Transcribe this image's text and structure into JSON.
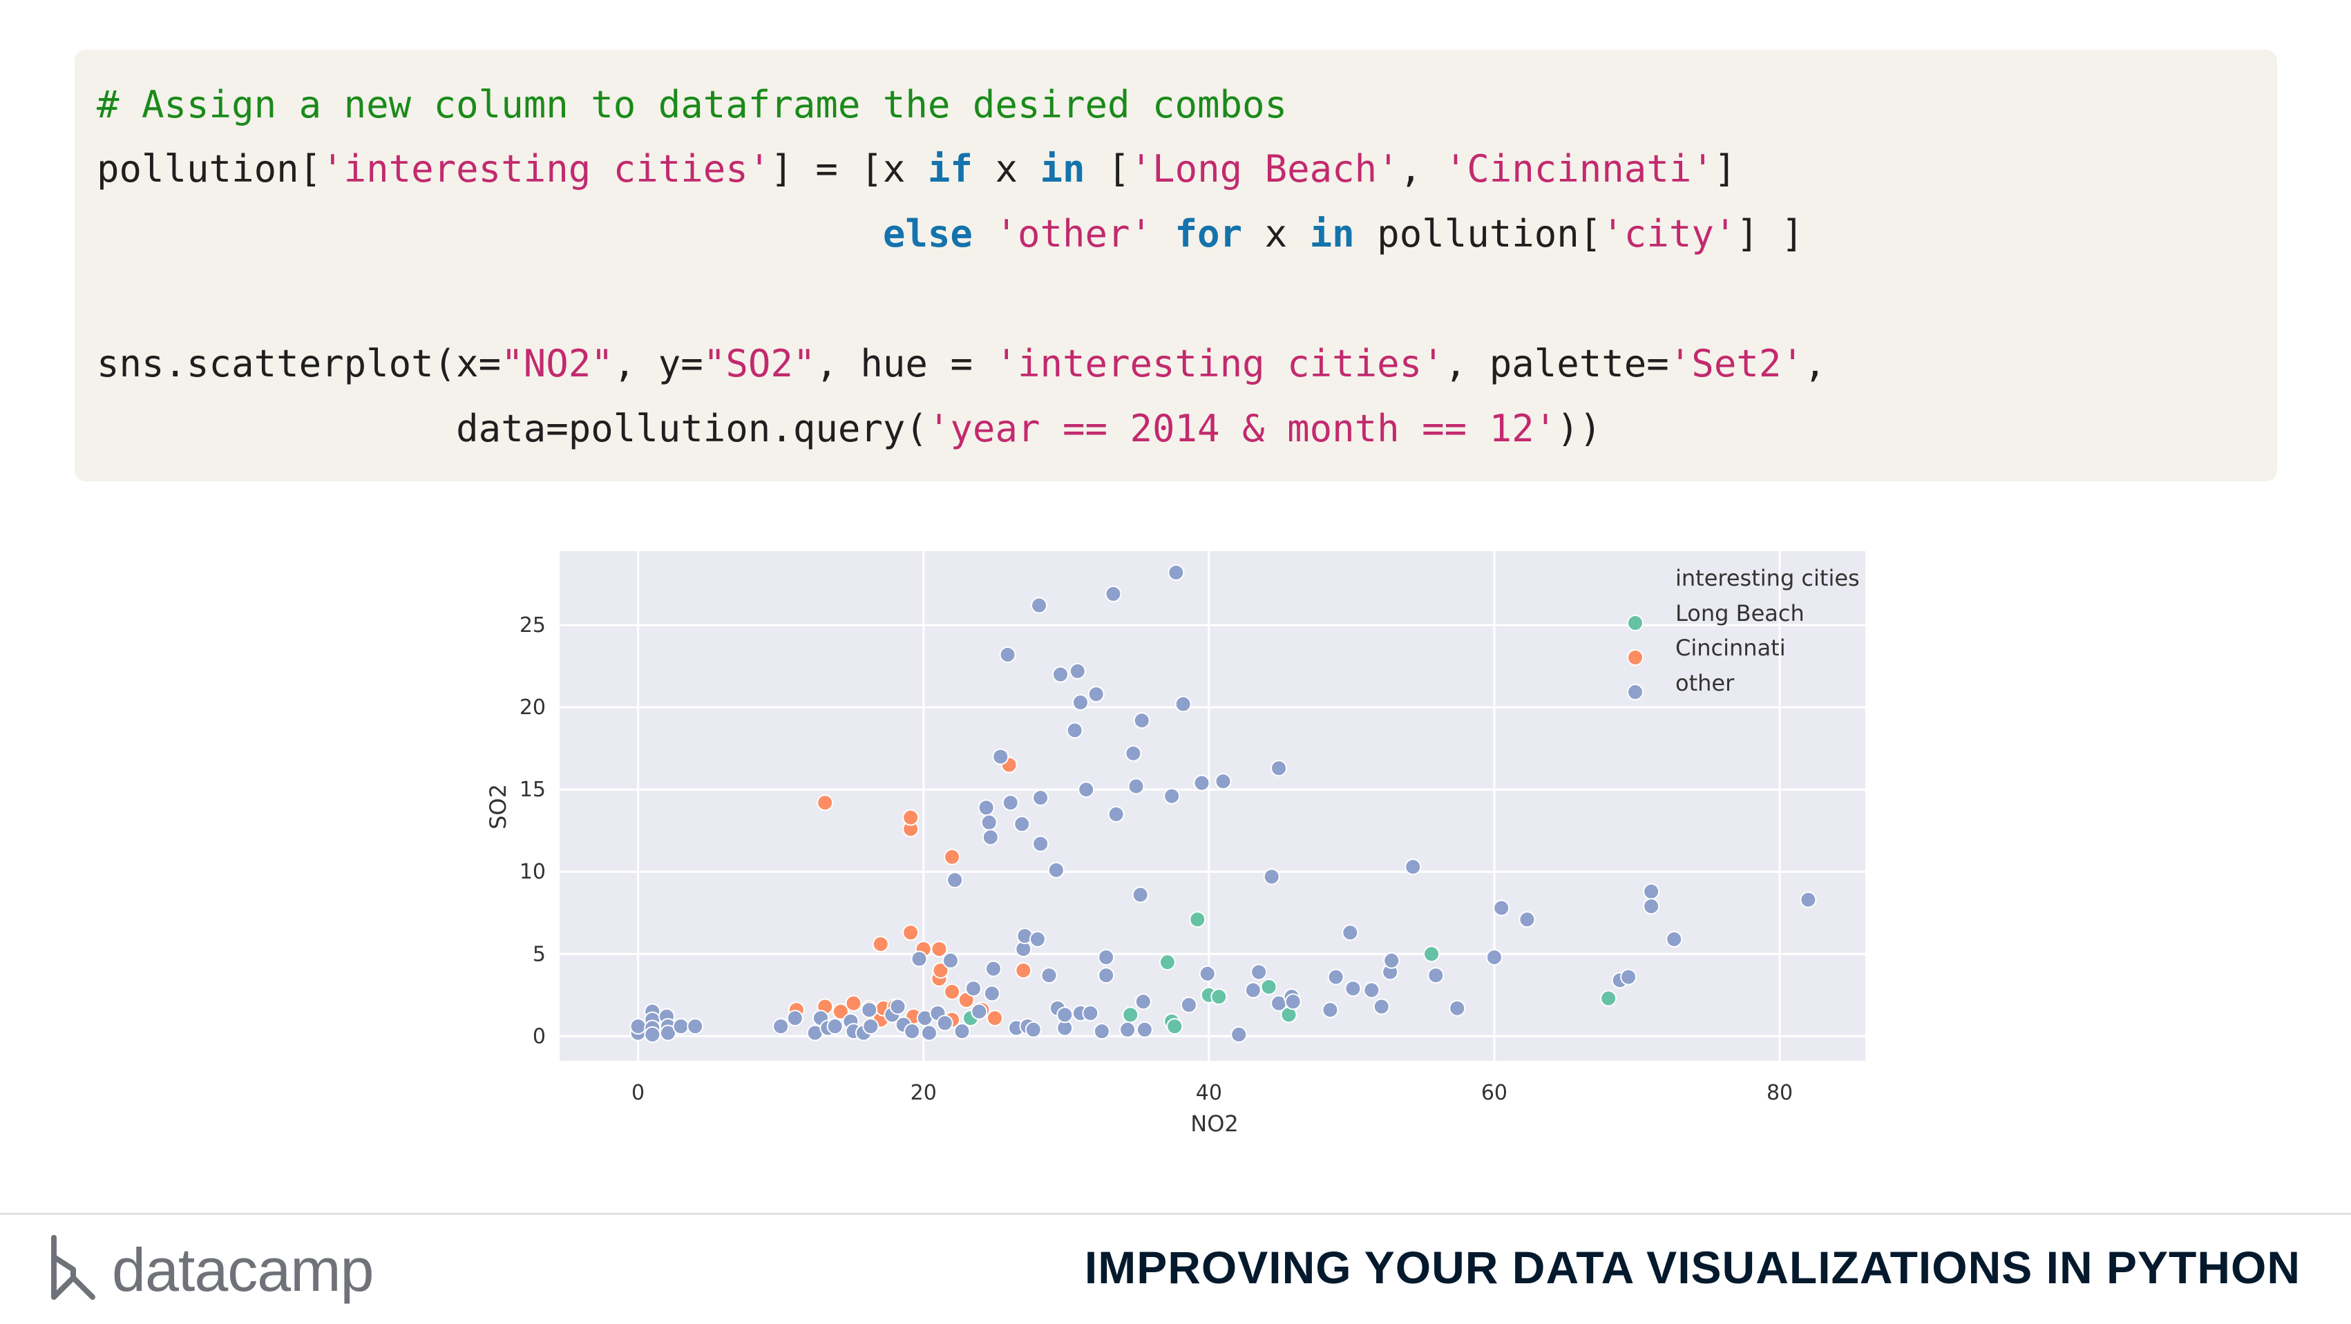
{
  "code": {
    "line1": "# Assign a new column to dataframe the desired combos",
    "line2_a": "pollution[",
    "line2_b": "'interesting cities'",
    "line2_c": "] = [x ",
    "line2_d": "if",
    "line2_e": " x ",
    "line2_f": "in",
    "line2_g": " [",
    "line2_h": "'Long Beach'",
    "line2_i": ", ",
    "line2_j": "'Cincinnati'",
    "line2_k": "]",
    "line3_indent": "                                   ",
    "line3_a": "else",
    "line3_b": " ",
    "line3_c": "'other'",
    "line3_d": " ",
    "line3_e": "for",
    "line3_f": " x ",
    "line3_g": "in",
    "line3_h": " pollution[",
    "line3_i": "'city'",
    "line3_j": "] ]",
    "line4_a": "sns.scatterplot(x=",
    "line4_b": "\"NO2\"",
    "line4_c": ", y=",
    "line4_d": "\"SO2\"",
    "line4_e": ", hue = ",
    "line4_f": "'interesting cities'",
    "line4_g": ", palette=",
    "line4_h": "'Set2'",
    "line4_i": ",",
    "line5_indent": "                ",
    "line5_a": "data=pollution.query(",
    "line5_b": "'year == 2014 & month == 12'",
    "line5_c": "))"
  },
  "footer": {
    "logo_text": "datacamp",
    "course_title": "IMPROVING YOUR DATA VISUALIZATIONS IN PYTHON"
  },
  "chart_data": {
    "type": "scatter",
    "xlabel": "NO2",
    "ylabel": "SO2",
    "xlim": [
      -5.5,
      86
    ],
    "ylim": [
      -1.5,
      29.5
    ],
    "xticks": [
      0,
      20,
      40,
      60,
      80
    ],
    "yticks": [
      0,
      5,
      10,
      15,
      20,
      25
    ],
    "grid": true,
    "legend_title": "interesting cities",
    "legend_position": "top-right",
    "colors": {
      "Long Beach": "#66c2a5",
      "Cincinnati": "#fc8d62",
      "other": "#8da0cb"
    },
    "series": [
      {
        "name": "Long Beach",
        "points": [
          [
            23.3,
            1.1
          ],
          [
            34.5,
            1.3
          ],
          [
            37.1,
            4.5
          ],
          [
            37.4,
            0.9
          ],
          [
            37.6,
            0.6
          ],
          [
            39.2,
            7.1
          ],
          [
            40.0,
            2.5
          ],
          [
            40.7,
            2.4
          ],
          [
            44.2,
            3.0
          ],
          [
            45.6,
            1.3
          ],
          [
            55.6,
            5.0
          ],
          [
            68.0,
            2.3
          ]
        ]
      },
      {
        "name": "Cincinnati",
        "points": [
          [
            11.1,
            1.6
          ],
          [
            13.1,
            1.8
          ],
          [
            13.1,
            14.2
          ],
          [
            14.2,
            1.5
          ],
          [
            15.1,
            2.0
          ],
          [
            16.2,
            1.7
          ],
          [
            17.0,
            1.0
          ],
          [
            17.0,
            5.6
          ],
          [
            17.2,
            1.7
          ],
          [
            18.0,
            1.8
          ],
          [
            19.1,
            6.3
          ],
          [
            19.1,
            12.6
          ],
          [
            19.1,
            13.3
          ],
          [
            19.3,
            1.2
          ],
          [
            20.0,
            5.3
          ],
          [
            21.1,
            5.3
          ],
          [
            21.1,
            3.5
          ],
          [
            21.2,
            4.0
          ],
          [
            22.0,
            2.7
          ],
          [
            22.0,
            1.0
          ],
          [
            22.0,
            10.9
          ],
          [
            23.0,
            2.2
          ],
          [
            24.1,
            1.6
          ],
          [
            25.0,
            1.1
          ],
          [
            26.0,
            16.5
          ],
          [
            27.0,
            4.0
          ]
        ]
      },
      {
        "name": "other",
        "points": [
          [
            0.0,
            0.2
          ],
          [
            0.0,
            0.6
          ],
          [
            1.0,
            1.5
          ],
          [
            1.0,
            1.0
          ],
          [
            1.0,
            0.5
          ],
          [
            1.0,
            0.1
          ],
          [
            2.0,
            1.2
          ],
          [
            2.1,
            0.6
          ],
          [
            2.1,
            0.2
          ],
          [
            3.0,
            0.6
          ],
          [
            4.0,
            0.6
          ],
          [
            10.0,
            0.6
          ],
          [
            11.0,
            1.1
          ],
          [
            12.4,
            0.2
          ],
          [
            12.8,
            1.1
          ],
          [
            13.3,
            0.5
          ],
          [
            13.8,
            0.6
          ],
          [
            14.9,
            0.9
          ],
          [
            15.1,
            0.3
          ],
          [
            15.8,
            0.2
          ],
          [
            16.2,
            1.6
          ],
          [
            16.3,
            0.6
          ],
          [
            17.8,
            1.3
          ],
          [
            18.2,
            1.8
          ],
          [
            18.6,
            0.7
          ],
          [
            19.2,
            0.3
          ],
          [
            19.7,
            4.7
          ],
          [
            20.1,
            1.1
          ],
          [
            20.4,
            0.2
          ],
          [
            21.0,
            1.4
          ],
          [
            21.5,
            0.8
          ],
          [
            21.9,
            4.6
          ],
          [
            22.2,
            9.5
          ],
          [
            22.7,
            0.3
          ],
          [
            23.5,
            2.9
          ],
          [
            23.9,
            1.5
          ],
          [
            24.4,
            13.9
          ],
          [
            24.6,
            13.0
          ],
          [
            24.7,
            12.1
          ],
          [
            24.8,
            2.6
          ],
          [
            24.9,
            4.1
          ],
          [
            25.4,
            17.0
          ],
          [
            25.9,
            23.2
          ],
          [
            26.1,
            14.2
          ],
          [
            26.5,
            0.5
          ],
          [
            26.9,
            12.9
          ],
          [
            27.0,
            5.3
          ],
          [
            27.1,
            6.1
          ],
          [
            27.3,
            0.6
          ],
          [
            27.7,
            0.4
          ],
          [
            28.0,
            5.9
          ],
          [
            28.1,
            26.2
          ],
          [
            28.2,
            11.7
          ],
          [
            28.2,
            14.5
          ],
          [
            28.8,
            3.7
          ],
          [
            29.3,
            10.1
          ],
          [
            29.4,
            1.7
          ],
          [
            29.6,
            22.0
          ],
          [
            29.9,
            0.5
          ],
          [
            29.9,
            1.3
          ],
          [
            30.6,
            18.6
          ],
          [
            30.8,
            22.2
          ],
          [
            31.0,
            20.3
          ],
          [
            31.0,
            1.4
          ],
          [
            31.4,
            15.0
          ],
          [
            31.7,
            1.4
          ],
          [
            32.1,
            20.8
          ],
          [
            32.5,
            0.3
          ],
          [
            32.8,
            4.8
          ],
          [
            32.8,
            3.7
          ],
          [
            33.3,
            26.9
          ],
          [
            33.5,
            13.5
          ],
          [
            34.3,
            0.4
          ],
          [
            34.7,
            17.2
          ],
          [
            34.9,
            15.2
          ],
          [
            35.2,
            8.6
          ],
          [
            35.3,
            19.2
          ],
          [
            35.4,
            2.1
          ],
          [
            35.5,
            0.4
          ],
          [
            37.4,
            14.6
          ],
          [
            37.7,
            28.2
          ],
          [
            38.2,
            20.2
          ],
          [
            38.6,
            1.9
          ],
          [
            39.5,
            15.4
          ],
          [
            39.9,
            3.8
          ],
          [
            41.0,
            15.5
          ],
          [
            42.1,
            0.1
          ],
          [
            43.1,
            2.8
          ],
          [
            43.5,
            3.9
          ],
          [
            44.4,
            9.7
          ],
          [
            44.9,
            16.3
          ],
          [
            44.9,
            2.0
          ],
          [
            45.8,
            2.4
          ],
          [
            45.9,
            2.1
          ],
          [
            48.5,
            1.6
          ],
          [
            48.9,
            3.6
          ],
          [
            49.9,
            6.3
          ],
          [
            50.1,
            2.9
          ],
          [
            51.4,
            2.8
          ],
          [
            52.1,
            1.8
          ],
          [
            52.7,
            3.9
          ],
          [
            52.8,
            4.6
          ],
          [
            54.3,
            10.3
          ],
          [
            55.9,
            3.7
          ],
          [
            57.4,
            1.7
          ],
          [
            60.0,
            4.8
          ],
          [
            60.5,
            7.8
          ],
          [
            62.3,
            7.1
          ],
          [
            68.8,
            3.4
          ],
          [
            69.4,
            3.6
          ],
          [
            71.0,
            8.8
          ],
          [
            71.0,
            7.9
          ],
          [
            72.6,
            5.9
          ],
          [
            82.0,
            8.3
          ]
        ]
      }
    ]
  }
}
